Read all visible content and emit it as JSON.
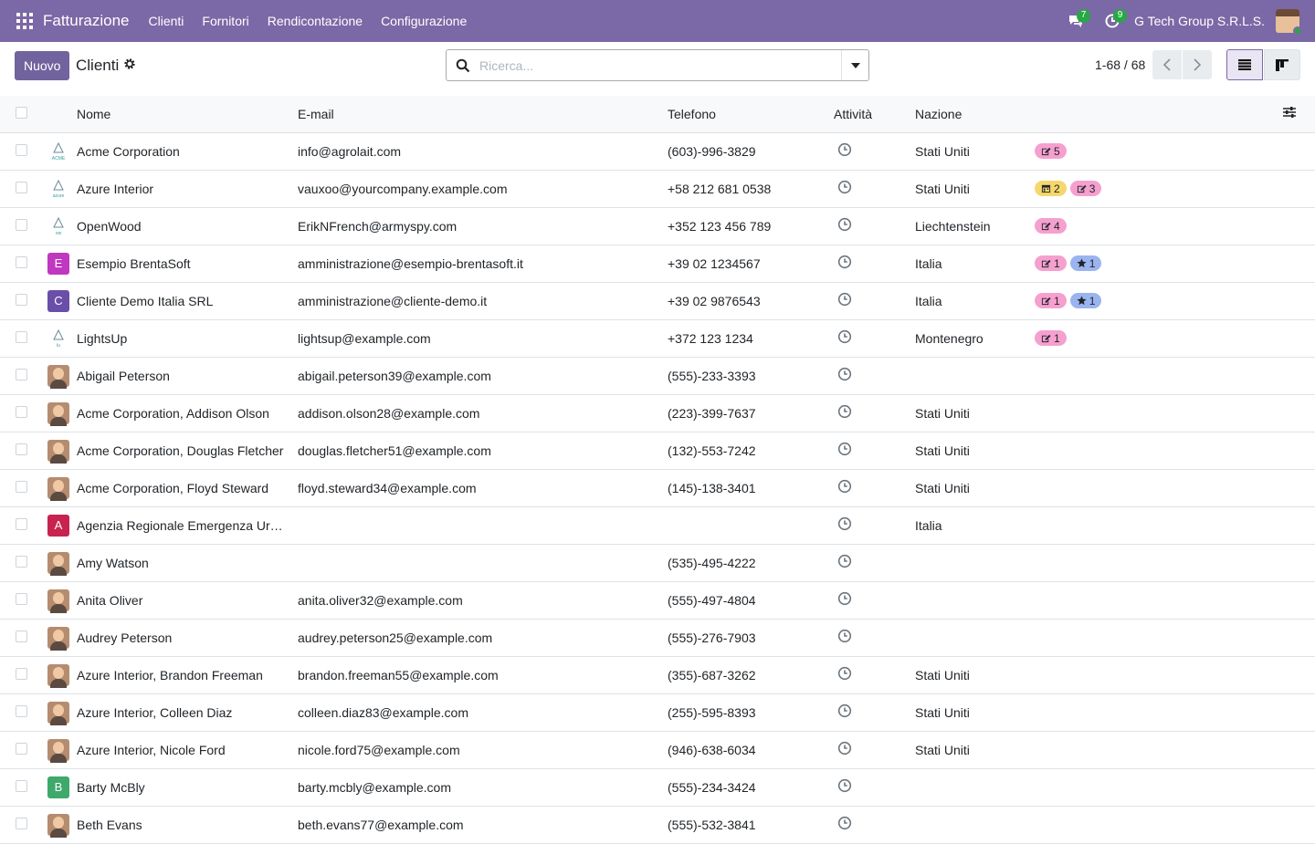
{
  "navbar": {
    "app_name": "Fatturazione",
    "menu": [
      "Clienti",
      "Fornitori",
      "Rendicontazione",
      "Configurazione"
    ],
    "messages_count": "7",
    "activities_count": "9",
    "company": "G Tech Group S.R.L.S."
  },
  "control": {
    "new_label": "Nuovo",
    "title": "Clienti",
    "search_placeholder": "Ricerca...",
    "pager": "1-68 / 68"
  },
  "columns": [
    "Nome",
    "E-mail",
    "Telefono",
    "Attività",
    "Nazione"
  ],
  "colors": {
    "navbar": "#7b68a6",
    "tag_pink": "#f5a0cf",
    "tag_yellow": "#f5d76e",
    "tag_blue": "#9ab4f0"
  },
  "rows": [
    {
      "name": "Acme Corporation",
      "email": "info@agrolait.com",
      "phone": "(603)-996-3829",
      "country": "Stati Uniti",
      "avatar": {
        "kind": "logo",
        "text": "ACME"
      },
      "tags": [
        {
          "icon": "edit-icon",
          "color": "pink",
          "count": "5"
        }
      ]
    },
    {
      "name": "Azure Interior",
      "email": "vauxoo@yourcompany.example.com",
      "phone": "+58 212 681 0538",
      "country": "Stati Uniti",
      "avatar": {
        "kind": "logo",
        "text": "azure"
      },
      "tags": [
        {
          "icon": "calendar-icon",
          "color": "yellow",
          "count": "2"
        },
        {
          "icon": "edit-icon",
          "color": "pink",
          "count": "3"
        }
      ]
    },
    {
      "name": "OpenWood",
      "email": "ErikNFrench@armyspy.com",
      "phone": "+352 123 456 789",
      "country": "Liechtenstein",
      "avatar": {
        "kind": "logo",
        "text": "ow"
      },
      "tags": [
        {
          "icon": "edit-icon",
          "color": "pink",
          "count": "4"
        }
      ]
    },
    {
      "name": "Esempio BrentaSoft",
      "email": "amministrazione@esempio-brentasoft.it",
      "phone": "+39 02 1234567",
      "country": "Italia",
      "avatar": {
        "kind": "letter",
        "text": "E",
        "color": "#c038c0"
      },
      "tags": [
        {
          "icon": "edit-icon",
          "color": "pink",
          "count": "1"
        },
        {
          "icon": "star-icon",
          "color": "blue",
          "count": "1"
        }
      ]
    },
    {
      "name": "Cliente Demo Italia SRL",
      "email": "amministrazione@cliente-demo.it",
      "phone": "+39 02 9876543",
      "country": "Italia",
      "avatar": {
        "kind": "letter",
        "text": "C",
        "color": "#6a4fa8"
      },
      "tags": [
        {
          "icon": "edit-icon",
          "color": "pink",
          "count": "1"
        },
        {
          "icon": "star-icon",
          "color": "blue",
          "count": "1"
        }
      ]
    },
    {
      "name": "LightsUp",
      "email": "lightsup@example.com",
      "phone": "+372 123 1234",
      "country": "Montenegro",
      "avatar": {
        "kind": "logo",
        "text": "lu"
      },
      "tags": [
        {
          "icon": "edit-icon",
          "color": "pink",
          "count": "1"
        }
      ]
    },
    {
      "name": "Abigail Peterson",
      "email": "abigail.peterson39@example.com",
      "phone": "(555)-233-3393",
      "country": "",
      "avatar": {
        "kind": "photo"
      },
      "tags": []
    },
    {
      "name": "Acme Corporation, Addison Olson",
      "email": "addison.olson28@example.com",
      "phone": "(223)-399-7637",
      "country": "Stati Uniti",
      "avatar": {
        "kind": "photo"
      },
      "tags": []
    },
    {
      "name": "Acme Corporation, Douglas Fletcher",
      "email": "douglas.fletcher51@example.com",
      "phone": "(132)-553-7242",
      "country": "Stati Uniti",
      "avatar": {
        "kind": "photo"
      },
      "tags": []
    },
    {
      "name": "Acme Corporation, Floyd Steward",
      "email": "floyd.steward34@example.com",
      "phone": "(145)-138-3401",
      "country": "Stati Uniti",
      "avatar": {
        "kind": "photo"
      },
      "tags": []
    },
    {
      "name": "Agenzia Regionale Emergenza Ur…",
      "email": "",
      "phone": "",
      "country": "Italia",
      "avatar": {
        "kind": "letter",
        "text": "A",
        "color": "#c8234f"
      },
      "tags": []
    },
    {
      "name": "Amy Watson",
      "email": "",
      "phone": "(535)-495-4222",
      "country": "",
      "avatar": {
        "kind": "photo"
      },
      "tags": []
    },
    {
      "name": "Anita Oliver",
      "email": "anita.oliver32@example.com",
      "phone": "(555)-497-4804",
      "country": "",
      "avatar": {
        "kind": "photo"
      },
      "tags": []
    },
    {
      "name": "Audrey Peterson",
      "email": "audrey.peterson25@example.com",
      "phone": "(555)-276-7903",
      "country": "",
      "avatar": {
        "kind": "photo"
      },
      "tags": []
    },
    {
      "name": "Azure Interior, Brandon Freeman",
      "email": "brandon.freeman55@example.com",
      "phone": "(355)-687-3262",
      "country": "Stati Uniti",
      "avatar": {
        "kind": "photo"
      },
      "tags": []
    },
    {
      "name": "Azure Interior, Colleen Diaz",
      "email": "colleen.diaz83@example.com",
      "phone": "(255)-595-8393",
      "country": "Stati Uniti",
      "avatar": {
        "kind": "photo"
      },
      "tags": []
    },
    {
      "name": "Azure Interior, Nicole Ford",
      "email": "nicole.ford75@example.com",
      "phone": "(946)-638-6034",
      "country": "Stati Uniti",
      "avatar": {
        "kind": "photo"
      },
      "tags": []
    },
    {
      "name": "Barty McBly",
      "email": "barty.mcbly@example.com",
      "phone": "(555)-234-3424",
      "country": "",
      "avatar": {
        "kind": "letter",
        "text": "B",
        "color": "#3fa86b"
      },
      "tags": []
    },
    {
      "name": "Beth Evans",
      "email": "beth.evans77@example.com",
      "phone": "(555)-532-3841",
      "country": "",
      "avatar": {
        "kind": "photo"
      },
      "tags": []
    }
  ]
}
